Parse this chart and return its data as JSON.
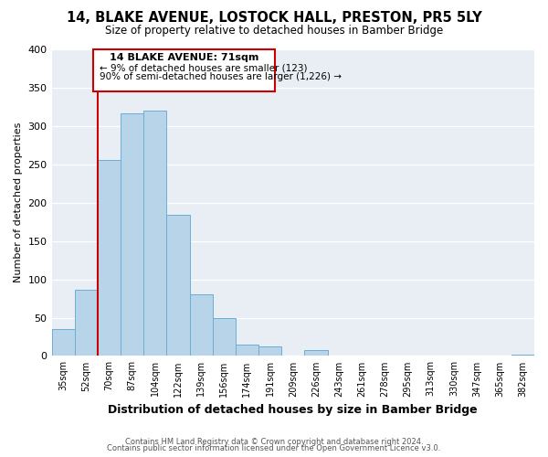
{
  "title": "14, BLAKE AVENUE, LOSTOCK HALL, PRESTON, PR5 5LY",
  "subtitle": "Size of property relative to detached houses in Bamber Bridge",
  "xlabel": "Distribution of detached houses by size in Bamber Bridge",
  "ylabel": "Number of detached properties",
  "bar_color": "#b8d4e8",
  "bar_edge_color": "#6aaed6",
  "bin_labels": [
    "35sqm",
    "52sqm",
    "70sqm",
    "87sqm",
    "104sqm",
    "122sqm",
    "139sqm",
    "156sqm",
    "174sqm",
    "191sqm",
    "209sqm",
    "226sqm",
    "243sqm",
    "261sqm",
    "278sqm",
    "295sqm",
    "313sqm",
    "330sqm",
    "347sqm",
    "365sqm",
    "382sqm"
  ],
  "bar_heights": [
    35,
    86,
    256,
    317,
    320,
    184,
    80,
    50,
    15,
    12,
    0,
    8,
    0,
    0,
    0,
    0,
    0,
    0,
    0,
    0,
    2
  ],
  "ylim": [
    0,
    400
  ],
  "yticks": [
    0,
    50,
    100,
    150,
    200,
    250,
    300,
    350,
    400
  ],
  "property_line_label": "14 BLAKE AVENUE: 71sqm",
  "annotation_line1": "← 9% of detached houses are smaller (123)",
  "annotation_line2": "90% of semi-detached houses are larger (1,226) →",
  "box_color": "#ffffff",
  "box_edge_color": "#cc0000",
  "line_color": "#cc0000",
  "footer1": "Contains HM Land Registry data © Crown copyright and database right 2024.",
  "footer2": "Contains public sector information licensed under the Open Government Licence v3.0.",
  "plot_bg_color": "#e8eef4",
  "fig_bg_color": "#ffffff"
}
